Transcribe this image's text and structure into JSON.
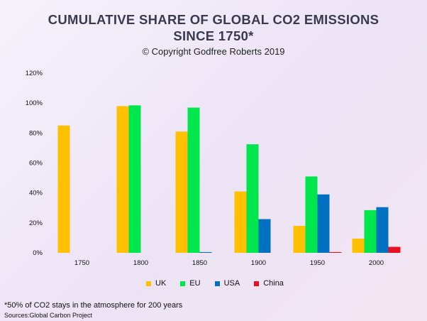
{
  "title_line1": "CUMULATIVE SHARE OF GLOBAL CO2 EMISSIONS",
  "title_line2": "SINCE 1750*",
  "subtitle": "© Copyright Godfree Roberts 2019",
  "footnote": "*50% of CO2 stays in the atmosphere for 200 years",
  "source": "Sources:Global Carbon Project",
  "colors": {
    "UK": "#ffc000",
    "EU": "#00e64d",
    "USA": "#0070c0",
    "China": "#e81123"
  },
  "chart_data": {
    "type": "bar",
    "title": "CUMULATIVE SHARE OF GLOBAL CO2 EMISSIONS SINCE 1750*",
    "xlabel": "",
    "ylabel": "",
    "categories": [
      "1750",
      "1800",
      "1850",
      "1900",
      "1950",
      "2000"
    ],
    "ylim": [
      0,
      120
    ],
    "y_ticks": [
      "0%",
      "20%",
      "40%",
      "60%",
      "80%",
      "100%",
      "120%"
    ],
    "y_tick_values": [
      0,
      20,
      40,
      60,
      80,
      100,
      120
    ],
    "legend_position": "bottom",
    "series": [
      {
        "name": "UK",
        "values": [
          85,
          98,
          81,
          41,
          18,
          9.5
        ]
      },
      {
        "name": "EU",
        "values": [
          0,
          98.5,
          97,
          72.5,
          51,
          28.5
        ]
      },
      {
        "name": "USA",
        "values": [
          0,
          0,
          0.5,
          22.5,
          39,
          30.5
        ]
      },
      {
        "name": "China",
        "values": [
          0,
          0,
          0,
          0,
          0.5,
          4
        ]
      }
    ]
  }
}
